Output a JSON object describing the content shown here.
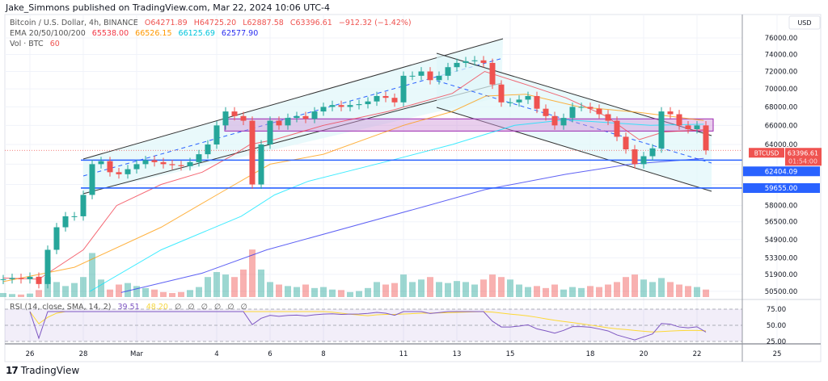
{
  "header": {
    "published": "Jake_Simmons published on TradingView.com, Mar 22, 2024 10:06 UTC-4",
    "symbol": "Bitcoin / U.S. Dollar, 4h, BINANCE",
    "open": "O64271.89",
    "high": "H64725.20",
    "low": "L62887.58",
    "close": "C63396.61",
    "change": "−912.32 (−1.42%)",
    "ema_label": "EMA 20/50/100/200",
    "ema_values": [
      "65538.00",
      "66526.15",
      "66125.69",
      "62577.90"
    ],
    "vol_label": "Vol · BTC",
    "vol_value": "60"
  },
  "rsi_legend": {
    "label": "RSI (14, close, SMA, 14, 2)",
    "rsi": "39.51",
    "sma": "48.20",
    "na": [
      "∅",
      "∅",
      "∅",
      "∅",
      "∅",
      "∅"
    ]
  },
  "price_axis": {
    "currency": "USD",
    "ticks": [
      "76000.00",
      "74000.00",
      "72000.00",
      "70000.00",
      "68000.00",
      "66000.00",
      "64000.00",
      "58000.00",
      "56500.00",
      "54900.00",
      "53300.00",
      "51900.00",
      "50500.00"
    ],
    "current_symbol": "BTCUSD",
    "current_price": "63396.61",
    "countdown": "01:54:00",
    "levels": [
      "62404.09",
      "59655.00"
    ]
  },
  "rsi_axis": {
    "ticks": [
      "75.00",
      "50.00",
      "25.00"
    ]
  },
  "time_axis": [
    {
      "label": "26",
      "date": "2024-02-26T00"
    },
    {
      "label": "28",
      "date": "2024-02-28T00"
    },
    {
      "label": "Mar",
      "date": "2024-03-01T00"
    },
    {
      "label": "4",
      "date": "2024-03-04T00"
    },
    {
      "label": "6",
      "date": "2024-03-06T00"
    },
    {
      "label": "8",
      "date": "2024-03-08T00"
    },
    {
      "label": "11",
      "date": "2024-03-11T00"
    },
    {
      "label": "13",
      "date": "2024-03-13T00"
    },
    {
      "label": "15",
      "date": "2024-03-15T00"
    },
    {
      "label": "18",
      "date": "2024-03-18T00"
    },
    {
      "label": "20",
      "date": "2024-03-20T00"
    },
    {
      "label": "22",
      "date": "2024-03-22T00"
    },
    {
      "label": "25",
      "date": "2024-03-25T00"
    }
  ],
  "brand": "TradingView",
  "colors": {
    "up": "#26a69a",
    "down": "#ef5350",
    "ema20": "#f23645",
    "ema50": "#ff9800",
    "ema100": "#00e5ff",
    "ema200": "#2a2ef0",
    "level": "#2962ff",
    "rsi": "#7e57c2",
    "rsi_sma": "#fdd835",
    "zone": "#9c27b0",
    "channel": "#e0f7fa"
  },
  "chart_data": {
    "type": "candlestick",
    "title": "Bitcoin / U.S. Dollar, 4h, BINANCE",
    "scale": "log",
    "ylim": [
      50500,
      76000
    ],
    "xlim": [
      "2024-02-25T00",
      "2024-03-25T12"
    ],
    "grid": true,
    "candles": [
      [
        "2024-02-25T00",
        51500,
        8
      ],
      [
        "2024-02-25T08",
        51600,
        6
      ],
      [
        "2024-02-25T16",
        51500,
        5
      ],
      [
        "2024-02-26T00",
        51700,
        7
      ],
      [
        "2024-02-26T08",
        51100,
        14
      ],
      [
        "2024-02-26T16",
        54000,
        40
      ],
      [
        "2024-02-27T00",
        56000,
        30
      ],
      [
        "2024-02-27T08",
        57000,
        22
      ],
      [
        "2024-02-27T16",
        57000,
        28
      ],
      [
        "2024-02-28T00",
        59000,
        40
      ],
      [
        "2024-02-28T08",
        62000,
        88
      ],
      [
        "2024-02-28T16",
        62300,
        35
      ],
      [
        "2024-02-29T00",
        61200,
        15
      ],
      [
        "2024-02-29T08",
        61000,
        25
      ],
      [
        "2024-02-29T16",
        61500,
        28
      ],
      [
        "2024-03-01T00",
        62000,
        22
      ],
      [
        "2024-03-01T08",
        62400,
        18
      ],
      [
        "2024-03-01T16",
        62200,
        15
      ],
      [
        "2024-03-02T00",
        62000,
        10
      ],
      [
        "2024-03-02T08",
        61900,
        8
      ],
      [
        "2024-03-02T16",
        61800,
        10
      ],
      [
        "2024-03-03T00",
        62200,
        14
      ],
      [
        "2024-03-03T08",
        63000,
        20
      ],
      [
        "2024-03-03T16",
        64000,
        40
      ],
      [
        "2024-03-04T00",
        66000,
        50
      ],
      [
        "2024-03-04T08",
        67500,
        45
      ],
      [
        "2024-03-04T16",
        67000,
        40
      ],
      [
        "2024-03-05T00",
        66500,
        55
      ],
      [
        "2024-03-05T08",
        60000,
        95
      ],
      [
        "2024-03-05T16",
        64000,
        55
      ],
      [
        "2024-03-06T00",
        66500,
        30
      ],
      [
        "2024-03-06T08",
        66000,
        25
      ],
      [
        "2024-03-06T16",
        66800,
        22
      ],
      [
        "2024-03-07T00",
        67000,
        20
      ],
      [
        "2024-03-07T08",
        66700,
        25
      ],
      [
        "2024-03-07T16",
        67500,
        18
      ],
      [
        "2024-03-08T00",
        68000,
        20
      ],
      [
        "2024-03-08T08",
        68200,
        15
      ],
      [
        "2024-03-08T16",
        68000,
        14
      ],
      [
        "2024-03-09T00",
        68200,
        10
      ],
      [
        "2024-03-09T08",
        68300,
        12
      ],
      [
        "2024-03-09T16",
        68600,
        18
      ],
      [
        "2024-03-10T00",
        69200,
        30
      ],
      [
        "2024-03-10T08",
        69000,
        25
      ],
      [
        "2024-03-10T16",
        68500,
        28
      ],
      [
        "2024-03-11T00",
        71500,
        45
      ],
      [
        "2024-03-11T08",
        71500,
        30
      ],
      [
        "2024-03-11T16",
        72000,
        35
      ],
      [
        "2024-03-12T00",
        71000,
        40
      ],
      [
        "2024-03-12T08",
        71500,
        30
      ],
      [
        "2024-03-12T16",
        72500,
        28
      ],
      [
        "2024-03-13T00",
        73000,
        32
      ],
      [
        "2024-03-13T08",
        73200,
        30
      ],
      [
        "2024-03-13T16",
        73300,
        25
      ],
      [
        "2024-03-14T00",
        73000,
        35
      ],
      [
        "2024-03-14T08",
        70500,
        45
      ],
      [
        "2024-03-14T16",
        68500,
        40
      ],
      [
        "2024-03-15T00",
        68500,
        35
      ],
      [
        "2024-03-15T08",
        68800,
        25
      ],
      [
        "2024-03-15T16",
        69200,
        20
      ],
      [
        "2024-03-16T00",
        67800,
        22
      ],
      [
        "2024-03-16T08",
        67000,
        18
      ],
      [
        "2024-03-16T16",
        66000,
        25
      ],
      [
        "2024-03-17T00",
        66800,
        15
      ],
      [
        "2024-03-17T08",
        68000,
        20
      ],
      [
        "2024-03-17T16",
        68000,
        18
      ],
      [
        "2024-03-18T00",
        67800,
        22
      ],
      [
        "2024-03-18T08",
        67200,
        20
      ],
      [
        "2024-03-18T16",
        66500,
        25
      ],
      [
        "2024-03-19T00",
        64800,
        30
      ],
      [
        "2024-03-19T08",
        63500,
        40
      ],
      [
        "2024-03-19T16",
        62000,
        45
      ],
      [
        "2024-03-20T00",
        62800,
        35
      ],
      [
        "2024-03-20T08",
        63600,
        30
      ],
      [
        "2024-03-20T16",
        67500,
        38
      ],
      [
        "2024-03-21T00",
        67200,
        30
      ],
      [
        "2024-03-21T08",
        66000,
        25
      ],
      [
        "2024-03-21T16",
        65600,
        22
      ],
      [
        "2024-03-22T00",
        66000,
        20
      ],
      [
        "2024-03-22T08",
        63396.61,
        15
      ]
    ],
    "ema": [
      {
        "name": "EMA 20",
        "points": [
          [
            "2024-02-25T00",
            51600
          ],
          [
            "2024-02-26T08",
            51500
          ],
          [
            "2024-02-28T00",
            54000
          ],
          [
            "2024-02-29T06",
            58000
          ],
          [
            "2024-03-01T22",
            60000
          ],
          [
            "2024-03-03T11",
            61200
          ],
          [
            "2024-03-04T16",
            63000
          ],
          [
            "2024-03-05T06",
            64000
          ],
          [
            "2024-03-06T04",
            64500
          ],
          [
            "2024-03-08T00",
            66000
          ],
          [
            "2024-03-10T10",
            67500
          ],
          [
            "2024-03-12T20",
            69500
          ],
          [
            "2024-03-14T01",
            72000
          ],
          [
            "2024-03-15T14",
            70500
          ],
          [
            "2024-03-17T02",
            69000
          ],
          [
            "2024-03-18T14",
            67000
          ],
          [
            "2024-03-19T20",
            64500
          ],
          [
            "2024-03-20T18",
            65300
          ],
          [
            "2024-03-22T06",
            65538
          ]
        ]
      },
      {
        "name": "EMA 50",
        "points": [
          [
            "2024-02-25T00",
            51300
          ],
          [
            "2024-02-27T16",
            52500
          ],
          [
            "2024-03-01T22",
            56000
          ],
          [
            "2024-03-04T00",
            59000
          ],
          [
            "2024-03-06T00",
            62000
          ],
          [
            "2024-03-08T00",
            63000
          ],
          [
            "2024-03-11T00",
            66000
          ],
          [
            "2024-03-12T20",
            67500
          ],
          [
            "2024-03-14T02",
            69200
          ],
          [
            "2024-03-15T14",
            69400
          ],
          [
            "2024-03-17T14",
            68000
          ],
          [
            "2024-03-19T20",
            67400
          ],
          [
            "2024-03-22T06",
            66526
          ]
        ]
      },
      {
        "name": "EMA 100",
        "points": [
          [
            "2024-02-28T06",
            50500
          ],
          [
            "2024-03-01T22",
            54000
          ],
          [
            "2024-03-04T22",
            57000
          ],
          [
            "2024-03-06T04",
            59000
          ],
          [
            "2024-03-07T10",
            60300
          ],
          [
            "2024-03-10T10",
            62300
          ],
          [
            "2024-03-12T20",
            64000
          ],
          [
            "2024-03-15T04",
            66000
          ],
          [
            "2024-03-17T02",
            66600
          ],
          [
            "2024-03-20T06",
            66000
          ],
          [
            "2024-03-22T06",
            66126
          ]
        ]
      },
      {
        "name": "EMA 200",
        "points": [
          [
            "2024-02-29T10",
            50400
          ],
          [
            "2024-03-03T11",
            52000
          ],
          [
            "2024-03-05T21",
            54000
          ],
          [
            "2024-03-11T22",
            58000
          ],
          [
            "2024-03-14T01",
            59500
          ],
          [
            "2024-03-17T02",
            61000
          ],
          [
            "2024-03-19T12",
            62000
          ],
          [
            "2024-03-22T06",
            62578
          ]
        ]
      }
    ],
    "horizontal_levels": [
      62404.09,
      59655.0
    ],
    "current_price": 63396.61,
    "zone": [
      65400,
      66700
    ]
  }
}
